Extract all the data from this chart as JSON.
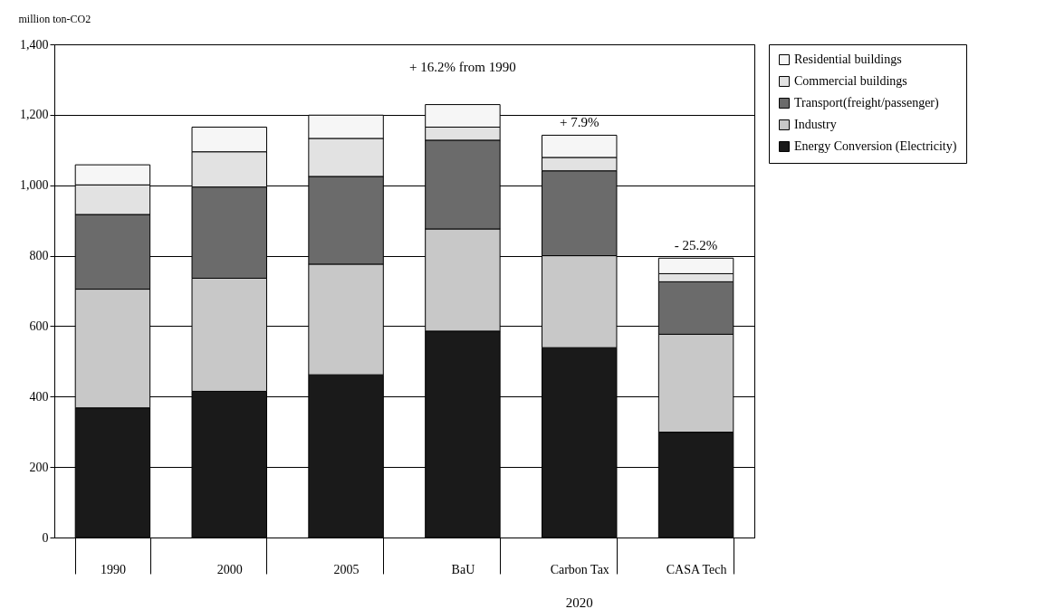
{
  "chart_data": {
    "type": "bar",
    "stacked": true,
    "ylabel": "million ton-CO2",
    "categories": [
      "1990",
      "2000",
      "2005",
      "BaU",
      "Carbon Tax",
      "CASA Tech"
    ],
    "series": [
      {
        "name": "Energy Conversion (Electricity)",
        "color": "#1a1a1a",
        "values": [
          368,
          415,
          462,
          586,
          539,
          299
        ]
      },
      {
        "name": "Industry",
        "color": "#c8c8c8",
        "values": [
          337,
          321,
          314,
          290,
          261,
          278
        ]
      },
      {
        "name": "Transport(freight/passenger)",
        "color": "#6b6b6b",
        "values": [
          212,
          259,
          249,
          252,
          241,
          149
        ]
      },
      {
        "name": "Commercial buildings",
        "color": "#e2e2e2",
        "values": [
          84,
          100,
          108,
          37,
          38,
          23
        ]
      },
      {
        "name": "Residential buildings",
        "color": "#f6f6f6",
        "values": [
          57,
          70,
          66,
          64,
          63,
          44
        ]
      }
    ],
    "ylim": [
      0,
      1400
    ],
    "yticks": [
      0,
      200,
      400,
      600,
      800,
      {
        "value": 1000,
        "label": "1,000"
      },
      {
        "value": 1200,
        "label": "1,200"
      },
      {
        "value": 1400,
        "label": "1,400"
      }
    ],
    "grid": "y",
    "legend": "right",
    "annotations": [
      "+ 16.2% from 1990",
      "+ 7.9%",
      "- 25.2%",
      "2020"
    ]
  }
}
